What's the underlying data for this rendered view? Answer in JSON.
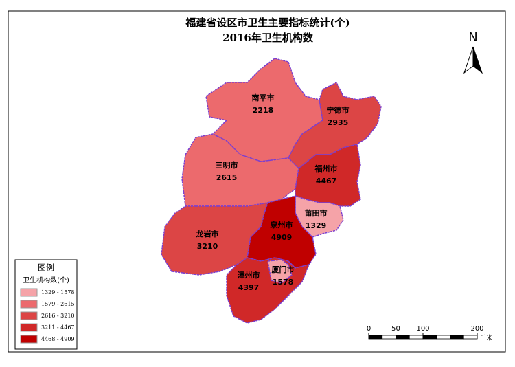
{
  "title": "福建省设区市卫生主要指标统计(个)",
  "subtitle": "2016年卫生机构数",
  "north": "N",
  "regions": [
    {
      "name": "南平市",
      "value": 2218
    },
    {
      "name": "宁德市",
      "value": 2935
    },
    {
      "name": "三明市",
      "value": 2615
    },
    {
      "name": "福州市",
      "value": 4467
    },
    {
      "name": "龙岩市",
      "value": 3210
    },
    {
      "name": "莆田市",
      "value": 1329
    },
    {
      "name": "泉州市",
      "value": 4909
    },
    {
      "name": "漳州市",
      "value": 4397
    },
    {
      "name": "厦门市",
      "value": 1578
    }
  ],
  "legend": {
    "title": "图例",
    "subtitle": "卫生机构数(个)",
    "classes": [
      {
        "label": "1329 - 1578",
        "min": 1329,
        "max": 1578,
        "color": "#f5a3a8"
      },
      {
        "label": "1579 - 2615",
        "min": 1579,
        "max": 2615,
        "color": "#ec6a6d"
      },
      {
        "label": "2616 - 3210",
        "min": 2616,
        "max": 3210,
        "color": "#dc4545"
      },
      {
        "label": "3211 - 4467",
        "min": 3211,
        "max": 4467,
        "color": "#d02828"
      },
      {
        "label": "4468 - 4909",
        "min": 4468,
        "max": 4909,
        "color": "#c00000"
      }
    ]
  },
  "scale_bar": {
    "ticks": [
      0,
      50,
      100,
      200
    ],
    "unit": "千米"
  }
}
